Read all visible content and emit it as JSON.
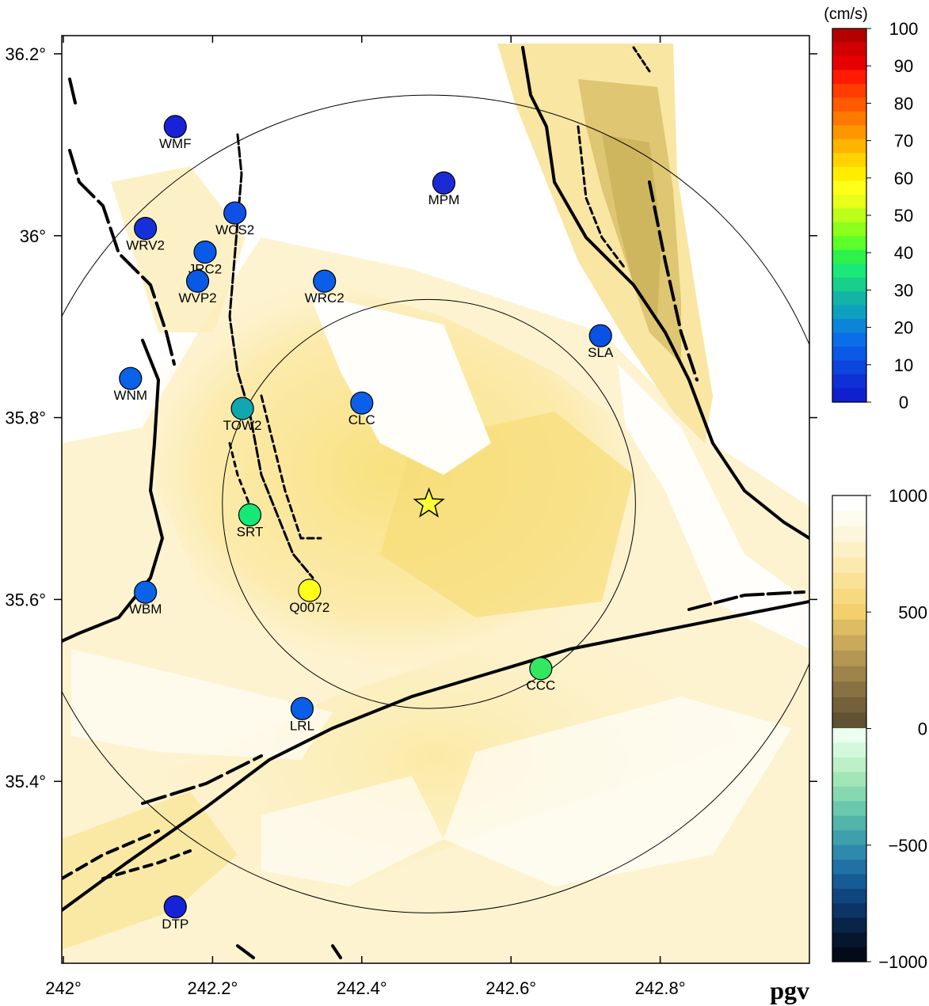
{
  "map": {
    "title": "pgv",
    "lon_range": [
      242.0,
      243.0
    ],
    "lat_range": [
      35.2,
      36.22
    ],
    "lon_ticks": [
      "242°",
      "242.2°",
      "242.4°",
      "242.6°",
      "242.8°"
    ],
    "lat_ticks": [
      "35.4°",
      "35.6°",
      "35.8°",
      "36°",
      "36.2°"
    ],
    "epicenter": {
      "lon": 242.49,
      "lat": 35.705,
      "color": "#ffff33"
    },
    "rings": [
      {
        "lon": 242.49,
        "lat": 35.705,
        "radius_km": 25
      },
      {
        "lon": 242.49,
        "lat": 35.705,
        "radius_km": 50
      }
    ],
    "stations": [
      {
        "code": "WMF",
        "lon": 242.15,
        "lat": 36.12,
        "color": "#1a22d8"
      },
      {
        "code": "MPM",
        "lon": 242.51,
        "lat": 36.058,
        "color": "#1a2bd6"
      },
      {
        "code": "WCS2",
        "lon": 242.23,
        "lat": 36.025,
        "color": "#1050e6"
      },
      {
        "code": "WRV2",
        "lon": 242.11,
        "lat": 36.008,
        "color": "#1630d8"
      },
      {
        "code": "JRC2",
        "lon": 242.19,
        "lat": 35.982,
        "color": "#0a5ae8"
      },
      {
        "code": "WVP2",
        "lon": 242.18,
        "lat": 35.95,
        "color": "#0a58e6"
      },
      {
        "code": "WRC2",
        "lon": 242.35,
        "lat": 35.95,
        "color": "#0a5ee8"
      },
      {
        "code": "SLA",
        "lon": 242.72,
        "lat": 35.89,
        "color": "#0a52e4"
      },
      {
        "code": "WNM",
        "lon": 242.09,
        "lat": 35.843,
        "color": "#0a62e8"
      },
      {
        "code": "CLC",
        "lon": 242.4,
        "lat": 35.816,
        "color": "#0a60e8"
      },
      {
        "code": "TOW2",
        "lon": 242.24,
        "lat": 35.81,
        "color": "#11a6b0"
      },
      {
        "code": "SRT",
        "lon": 242.25,
        "lat": 35.693,
        "color": "#16e878"
      },
      {
        "code": "Q0072",
        "lon": 242.33,
        "lat": 35.61,
        "color": "#ffff1a"
      },
      {
        "code": "WBM",
        "lon": 242.11,
        "lat": 35.608,
        "color": "#0a62e8"
      },
      {
        "code": "CCC",
        "lon": 242.64,
        "lat": 35.524,
        "color": "#32e860"
      },
      {
        "code": "LRL",
        "lon": 242.32,
        "lat": 35.48,
        "color": "#0a5ee8"
      },
      {
        "code": "DTP",
        "lon": 242.15,
        "lat": 35.262,
        "color": "#1622d8"
      }
    ]
  },
  "pgv_scale": {
    "unit": "(cm/s)",
    "labels": [
      "100",
      "90",
      "80",
      "70",
      "60",
      "50",
      "40",
      "30",
      "20",
      "10",
      "0"
    ],
    "colors": [
      "#ffff00",
      "#00ff00"
    ]
  },
  "topo_scale": {
    "labels": [
      "1000",
      "500",
      "0",
      "−500",
      "−1000"
    ]
  }
}
